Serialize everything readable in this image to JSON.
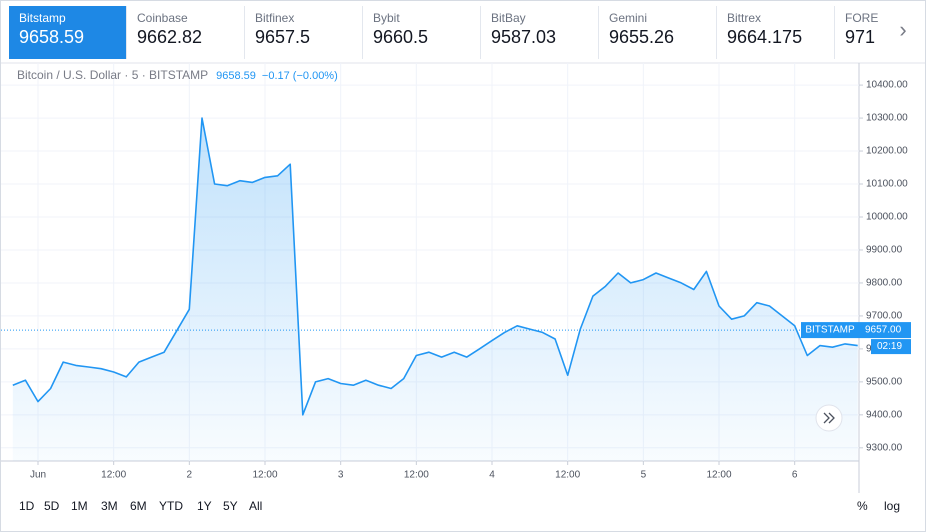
{
  "tabs": [
    {
      "name": "Bitstamp",
      "price": "9658.59"
    },
    {
      "name": "Coinbase",
      "price": "9662.82"
    },
    {
      "name": "Bitfinex",
      "price": "9657.5"
    },
    {
      "name": "Bybit",
      "price": "9660.5"
    },
    {
      "name": "BitBay",
      "price": "9587.03"
    },
    {
      "name": "Gemini",
      "price": "9655.26"
    },
    {
      "name": "Bittrex",
      "price": "9664.175"
    },
    {
      "name": "FORE",
      "price": "971"
    }
  ],
  "chart_data": {
    "type": "area",
    "title": "Bitcoin / U.S. Dollar · 5 · BITSTAMP",
    "header_price": "9658.59",
    "header_change": "−0.17 (−0.00%)",
    "color": "#2196f3",
    "values": [
      9490,
      9505,
      9440,
      9480,
      9560,
      9550,
      9545,
      9540,
      9530,
      9515,
      9560,
      9575,
      9590,
      9655,
      9720,
      10300,
      10100,
      10095,
      10110,
      10105,
      10120,
      10125,
      10160,
      9400,
      9500,
      9510,
      9495,
      9490,
      9505,
      9490,
      9480,
      9510,
      9580,
      9590,
      9575,
      9590,
      9575,
      9600,
      9625,
      9650,
      9670,
      9660,
      9650,
      9630,
      9520,
      9660,
      9760,
      9790,
      9830,
      9800,
      9810,
      9830,
      9815,
      9800,
      9780,
      9835,
      9730,
      9690,
      9700,
      9740,
      9730,
      9700,
      9670,
      9580,
      9610,
      9605,
      9615,
      9610
    ],
    "xlim": [
      -0.3,
      67.1
    ],
    "xticks": [
      {
        "value": 2,
        "label": "Jun"
      },
      {
        "value": 8,
        "label": "12:00"
      },
      {
        "value": 14,
        "label": "2"
      },
      {
        "value": 20,
        "label": "12:00"
      },
      {
        "value": 26,
        "label": "3"
      },
      {
        "value": 32,
        "label": "12:00"
      },
      {
        "value": 38,
        "label": "4"
      },
      {
        "value": 44,
        "label": "12:00"
      },
      {
        "value": 50,
        "label": "5"
      },
      {
        "value": 56,
        "label": "12:00"
      },
      {
        "value": 62,
        "label": "6"
      }
    ],
    "ylim": [
      9260,
      10467
    ],
    "yticks": [
      {
        "value": 9300,
        "label": "9300.00"
      },
      {
        "value": 9400,
        "label": "9400.00"
      },
      {
        "value": 9500,
        "label": "9500.00"
      },
      {
        "value": 9600,
        "label": "9600.00"
      },
      {
        "value": 9700,
        "label": "9700.00"
      },
      {
        "value": 9800,
        "label": "9800.00"
      },
      {
        "value": 9900,
        "label": "9900.00"
      },
      {
        "value": 10000,
        "label": "10000.00"
      },
      {
        "value": 10100,
        "label": "10100.00"
      },
      {
        "value": 10200,
        "label": "10200.00"
      },
      {
        "value": 10300,
        "label": "10300.00"
      },
      {
        "value": 10400,
        "label": "10400.00"
      }
    ],
    "grid": true,
    "price_line": {
      "value": 9657,
      "label": "9657.00",
      "source": "BITSTAMP",
      "countdown": "02:19"
    }
  },
  "ranges": [
    "1D",
    "5D",
    "1M",
    "3M",
    "6M",
    "YTD",
    "1Y",
    "5Y",
    "All"
  ],
  "scale_options": [
    "%",
    "log"
  ]
}
